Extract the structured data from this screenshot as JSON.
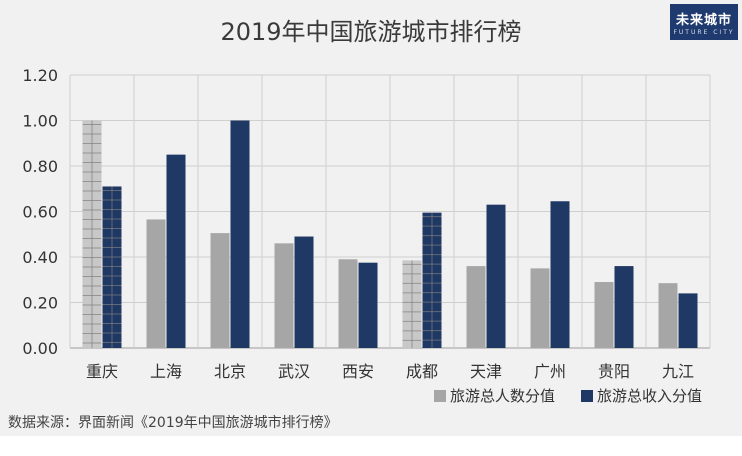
{
  "header": {
    "title": "2019年中国旅游城市排行榜",
    "logo_text": "未来城市",
    "logo_subtext": "FUTURE CITY"
  },
  "source": "数据来源：界面新闻《2019年中国旅游城市排行榜》",
  "colors": {
    "series1": "#a6a6a6",
    "series2": "#1f3864",
    "grid": "#cfcfcf",
    "highlight_grid": "#7f7f7f"
  },
  "chart_data": {
    "type": "bar",
    "categories": [
      "重庆",
      "上海",
      "北京",
      "武汉",
      "西安",
      "成都",
      "天津",
      "广州",
      "贵阳",
      "九江"
    ],
    "series": [
      {
        "name": "旅游总人数分值",
        "values": [
          1.0,
          0.565,
          0.505,
          0.46,
          0.39,
          0.385,
          0.36,
          0.35,
          0.29,
          0.285
        ]
      },
      {
        "name": "旅游总收入分值",
        "values": [
          0.71,
          0.85,
          1.0,
          0.49,
          0.375,
          0.595,
          0.63,
          0.645,
          0.36,
          0.24
        ]
      }
    ],
    "highlighted_categories": [
      "重庆",
      "成都"
    ],
    "yticks": [
      "0.00",
      "0.20",
      "0.40",
      "0.60",
      "0.80",
      "1.00",
      "1.20"
    ],
    "ylim": [
      0,
      1.2
    ],
    "grid": true,
    "legend_position": "bottom-right"
  }
}
